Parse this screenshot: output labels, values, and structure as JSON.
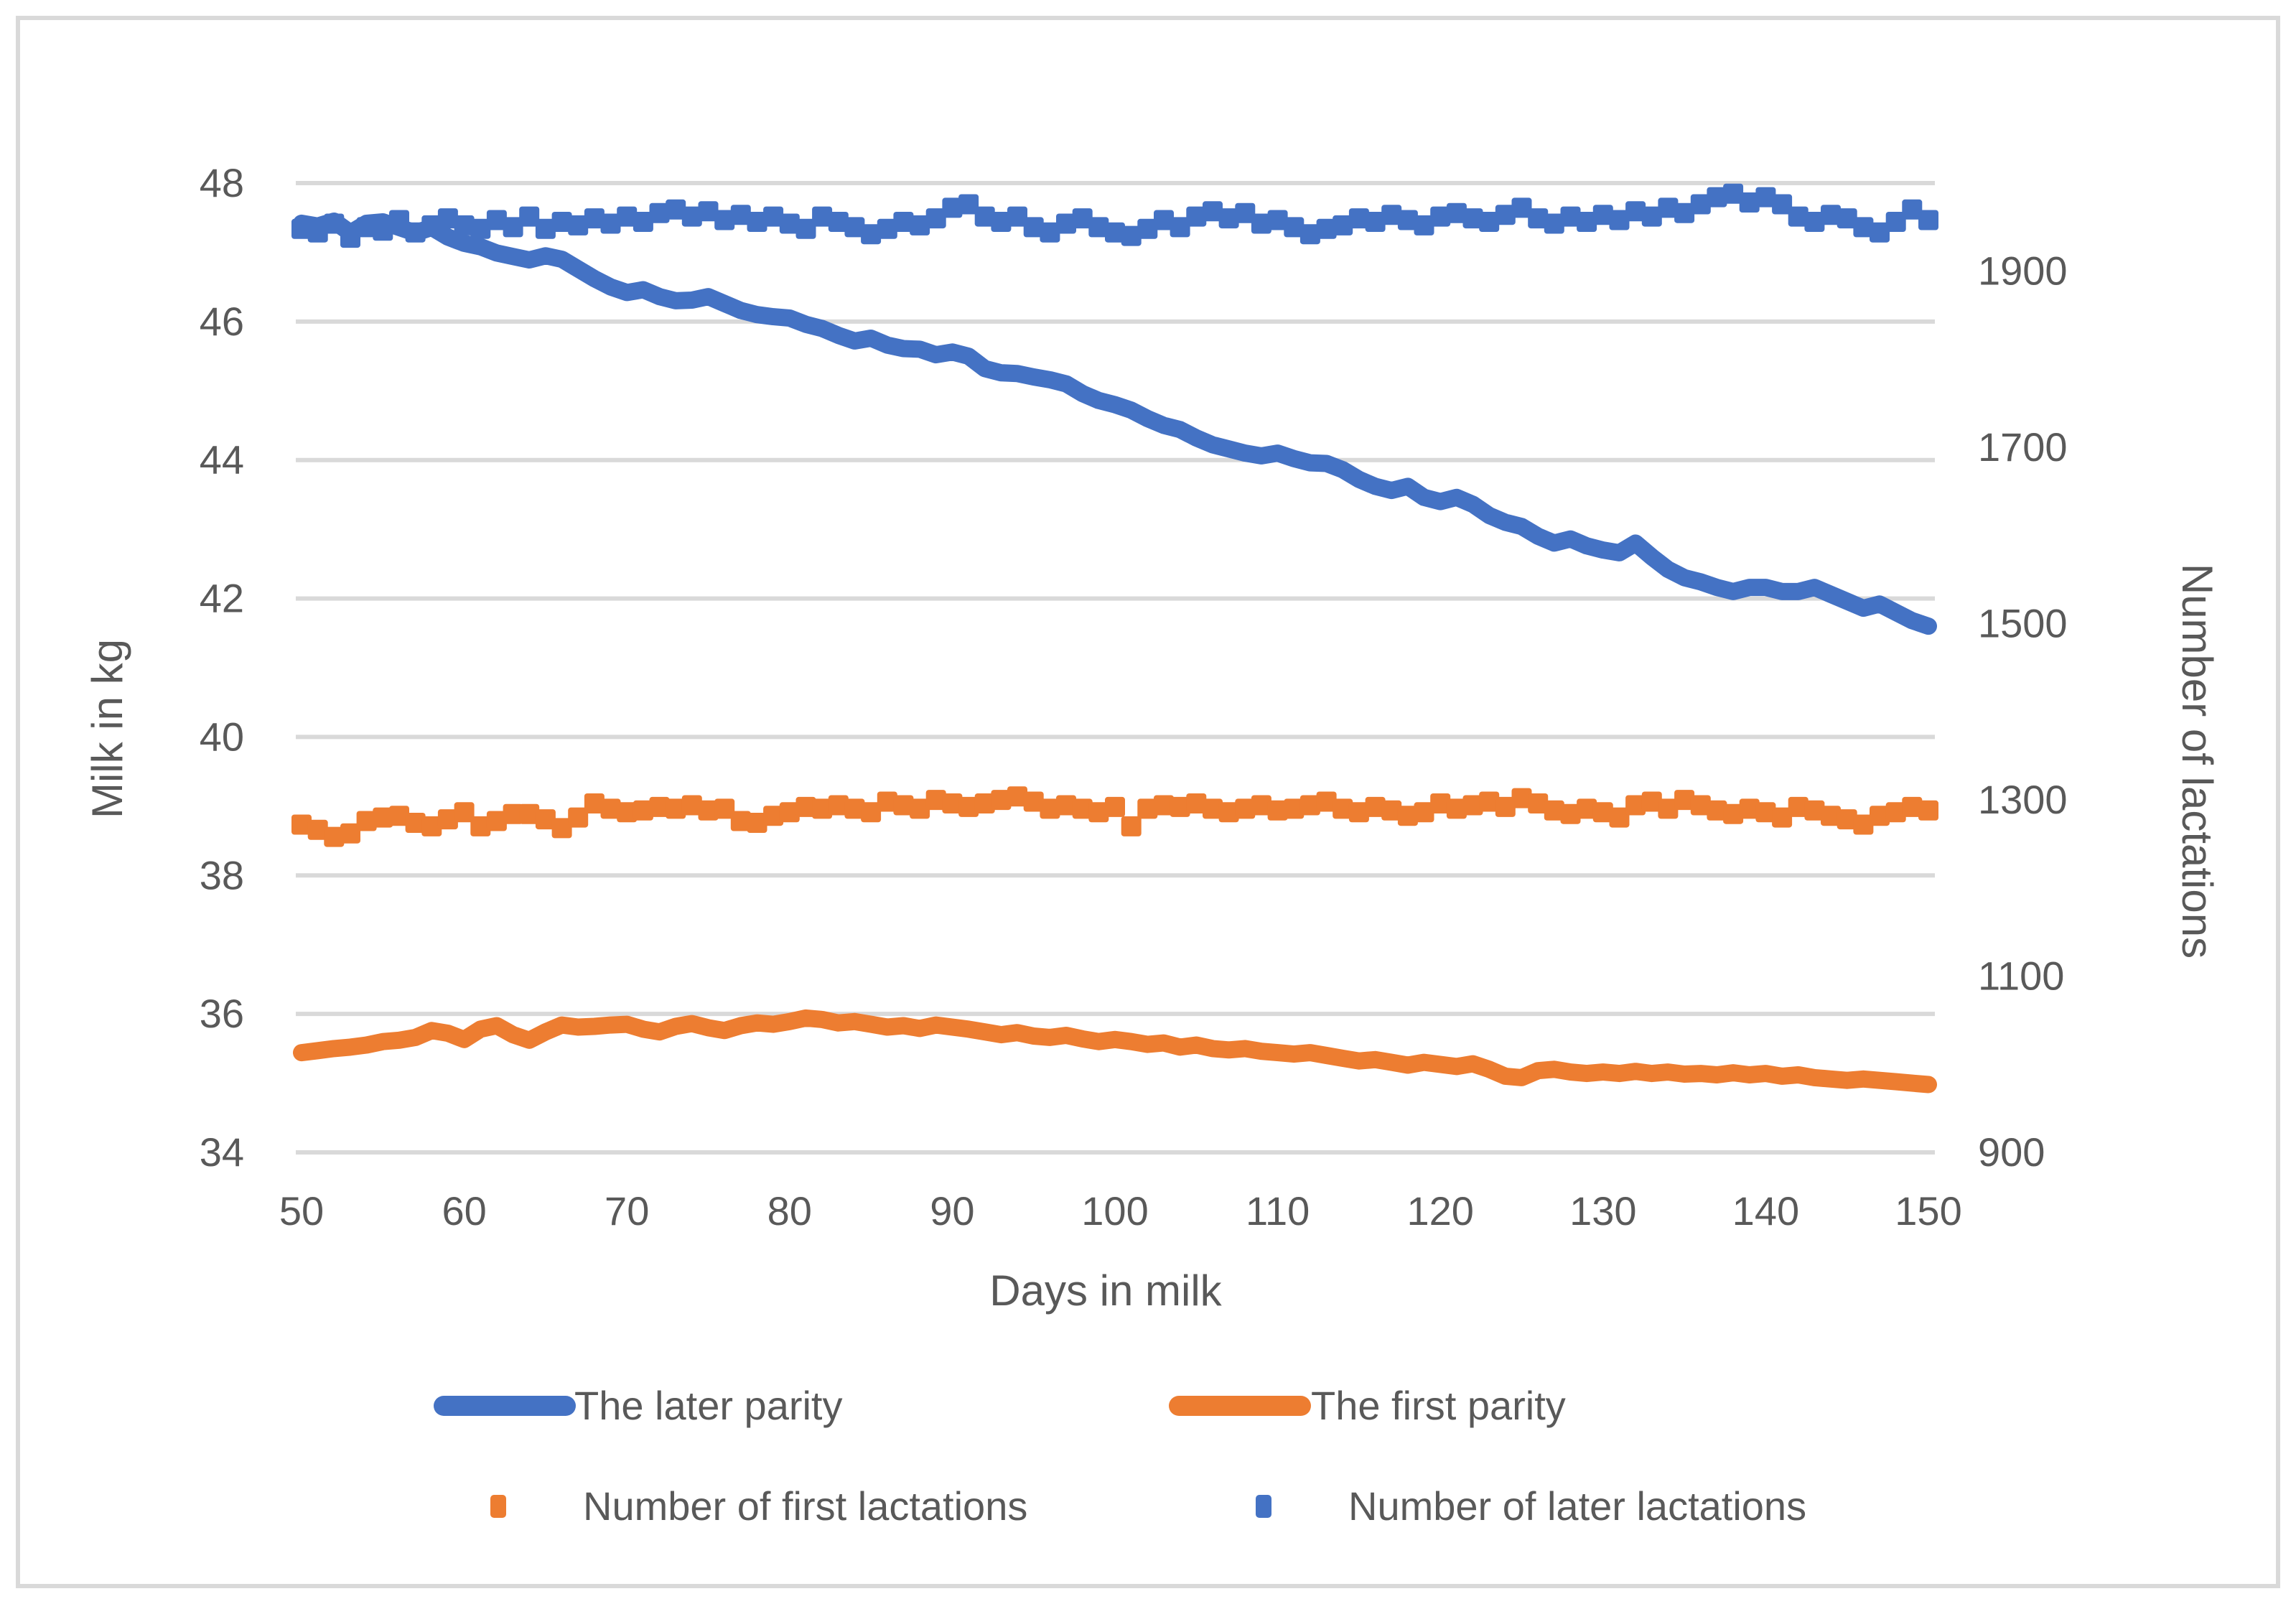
{
  "figure": {
    "background": "#FFFFFF",
    "border_color": "#D9D9D9",
    "gridline_color": "#D9D9D9",
    "text_color": "#595959",
    "accent_blue": "#4472C4",
    "accent_orange": "#ED7D31"
  },
  "chart_data": {
    "type": "line",
    "title": "",
    "xlabel": "Days in milk",
    "x_ticks": [
      50,
      60,
      70,
      80,
      90,
      100,
      110,
      120,
      130,
      140,
      150
    ],
    "x_range": [
      50,
      150
    ],
    "y_left": {
      "label": "Milk in kg",
      "ticks": [
        48,
        46,
        44,
        42,
        40,
        38,
        36,
        34
      ],
      "range": [
        34,
        48
      ]
    },
    "y_right": {
      "label": "Number of lactations",
      "ticks": [
        1900,
        1700,
        1500,
        1300,
        1100,
        900
      ],
      "range": [
        900,
        2000
      ]
    },
    "grid": "horizontal",
    "legend_position": "bottom",
    "x": [
      50,
      51,
      52,
      53,
      54,
      55,
      56,
      57,
      58,
      59,
      60,
      61,
      62,
      63,
      64,
      65,
      66,
      67,
      68,
      69,
      70,
      71,
      72,
      73,
      74,
      75,
      76,
      77,
      78,
      79,
      80,
      81,
      82,
      83,
      84,
      85,
      86,
      87,
      88,
      89,
      90,
      91,
      92,
      93,
      94,
      95,
      96,
      97,
      98,
      99,
      100,
      101,
      102,
      103,
      104,
      105,
      106,
      107,
      108,
      109,
      110,
      111,
      112,
      113,
      114,
      115,
      116,
      117,
      118,
      119,
      120,
      121,
      122,
      123,
      124,
      125,
      126,
      127,
      128,
      129,
      130,
      131,
      132,
      133,
      134,
      135,
      136,
      137,
      138,
      139,
      140,
      141,
      142,
      143,
      144,
      145,
      146,
      147,
      148,
      149,
      150
    ],
    "series": [
      {
        "name": "The later parity",
        "type": "line",
        "axis": "left",
        "color": "#4472C4",
        "values": [
          47.42,
          47.38,
          47.45,
          47.28,
          47.42,
          47.44,
          47.36,
          47.28,
          47.36,
          47.22,
          47.13,
          47.08,
          46.99,
          46.94,
          46.89,
          46.95,
          46.9,
          46.76,
          46.62,
          46.5,
          46.42,
          46.46,
          46.36,
          46.3,
          46.31,
          46.36,
          46.26,
          46.16,
          46.1,
          46.07,
          46.05,
          45.96,
          45.9,
          45.8,
          45.72,
          45.76,
          45.66,
          45.61,
          45.6,
          45.52,
          45.56,
          45.5,
          45.32,
          45.26,
          45.25,
          45.2,
          45.16,
          45.1,
          44.96,
          44.86,
          44.8,
          44.72,
          44.6,
          44.5,
          44.44,
          44.32,
          44.22,
          44.16,
          44.1,
          44.06,
          44.1,
          44.02,
          43.96,
          43.95,
          43.86,
          43.72,
          43.62,
          43.56,
          43.62,
          43.46,
          43.4,
          43.46,
          43.36,
          43.2,
          43.1,
          43.04,
          42.9,
          42.8,
          42.86,
          42.76,
          42.7,
          42.66,
          42.8,
          42.6,
          42.42,
          42.3,
          42.24,
          42.16,
          42.1,
          42.16,
          42.16,
          42.1,
          42.1,
          42.16,
          42.06,
          41.96,
          41.86,
          41.92,
          41.8,
          41.68,
          41.6
        ]
      },
      {
        "name": "The first parity",
        "type": "line",
        "axis": "left",
        "color": "#ED7D31",
        "values": [
          35.44,
          35.47,
          35.5,
          35.52,
          35.55,
          35.6,
          35.62,
          35.66,
          35.76,
          35.72,
          35.63,
          35.78,
          35.83,
          35.7,
          35.62,
          35.74,
          35.84,
          35.81,
          35.82,
          35.84,
          35.85,
          35.78,
          35.74,
          35.82,
          35.86,
          35.8,
          35.76,
          35.83,
          35.87,
          35.85,
          35.89,
          35.94,
          35.92,
          35.87,
          35.89,
          35.85,
          35.81,
          35.83,
          35.79,
          35.84,
          35.81,
          35.78,
          35.74,
          35.7,
          35.73,
          35.68,
          35.66,
          35.69,
          35.64,
          35.6,
          35.63,
          35.6,
          35.56,
          35.58,
          35.52,
          35.55,
          35.5,
          35.48,
          35.5,
          35.46,
          35.44,
          35.42,
          35.44,
          35.4,
          35.36,
          35.32,
          35.34,
          35.3,
          35.26,
          35.3,
          35.27,
          35.24,
          35.28,
          35.2,
          35.1,
          35.08,
          35.18,
          35.2,
          35.16,
          35.14,
          35.16,
          35.14,
          35.17,
          35.14,
          35.16,
          35.13,
          35.14,
          35.12,
          35.15,
          35.12,
          35.14,
          35.1,
          35.12,
          35.08,
          35.06,
          35.04,
          35.06,
          35.04,
          35.02,
          35.0,
          34.98
        ]
      },
      {
        "name": "Number of first lactations",
        "type": "scatter-square",
        "axis": "right",
        "color": "#ED7D31",
        "values": [
          1272,
          1266,
          1258,
          1262,
          1276,
          1280,
          1282,
          1274,
          1270,
          1278,
          1286,
          1270,
          1276,
          1284,
          1284,
          1278,
          1268,
          1280,
          1296,
          1290,
          1286,
          1288,
          1292,
          1290,
          1294,
          1288,
          1290,
          1276,
          1274,
          1282,
          1286,
          1292,
          1290,
          1294,
          1290,
          1286,
          1298,
          1294,
          1290,
          1300,
          1296,
          1292,
          1296,
          1300,
          1304,
          1298,
          1290,
          1294,
          1290,
          1286,
          1292,
          1270,
          1290,
          1294,
          1292,
          1296,
          1290,
          1286,
          1290,
          1294,
          1288,
          1290,
          1294,
          1298,
          1290,
          1286,
          1292,
          1288,
          1282,
          1286,
          1296,
          1290,
          1294,
          1298,
          1292,
          1302,
          1296,
          1288,
          1284,
          1290,
          1286,
          1280,
          1294,
          1298,
          1290,
          1300,
          1294,
          1288,
          1284,
          1290,
          1286,
          1280,
          1292,
          1288,
          1282,
          1278,
          1272,
          1282,
          1286,
          1292,
          1288
        ]
      },
      {
        "name": "Number of later lactations",
        "type": "scatter-square",
        "axis": "right",
        "color": "#4472C4",
        "values": [
          1948,
          1944,
          1954,
          1938,
          1950,
          1946,
          1958,
          1944,
          1952,
          1960,
          1952,
          1948,
          1958,
          1950,
          1962,
          1948,
          1956,
          1952,
          1960,
          1954,
          1962,
          1956,
          1966,
          1970,
          1962,
          1968,
          1958,
          1964,
          1956,
          1962,
          1954,
          1948,
          1962,
          1956,
          1950,
          1942,
          1948,
          1956,
          1952,
          1960,
          1972,
          1976,
          1962,
          1956,
          1962,
          1950,
          1944,
          1954,
          1960,
          1950,
          1944,
          1940,
          1948,
          1958,
          1950,
          1962,
          1968,
          1960,
          1966,
          1954,
          1958,
          1950,
          1942,
          1948,
          1952,
          1960,
          1956,
          1964,
          1958,
          1952,
          1962,
          1966,
          1960,
          1956,
          1964,
          1972,
          1960,
          1954,
          1962,
          1956,
          1964,
          1958,
          1968,
          1962,
          1972,
          1966,
          1976,
          1984,
          1988,
          1978,
          1984,
          1976,
          1962,
          1956,
          1964,
          1960,
          1950,
          1944,
          1956,
          1970,
          1958
        ]
      }
    ]
  },
  "legend": {
    "row1": [
      {
        "series_index": 0
      },
      {
        "series_index": 1
      }
    ],
    "row2": [
      {
        "series_index": 2
      },
      {
        "series_index": 3
      }
    ]
  }
}
